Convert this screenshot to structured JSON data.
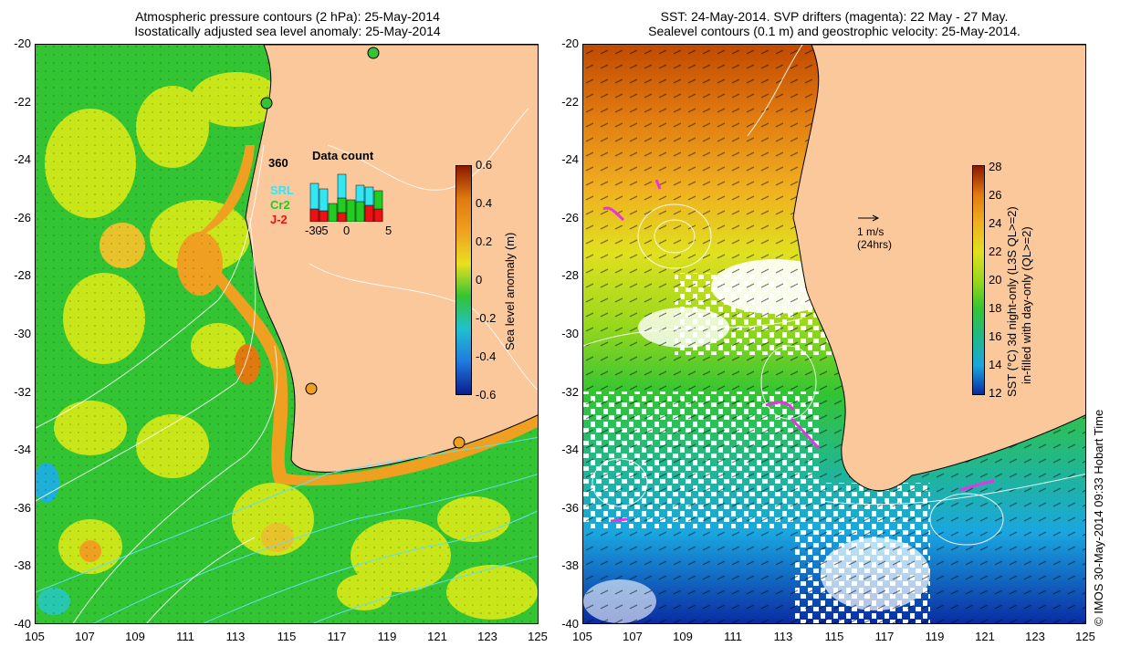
{
  "left_panel": {
    "title_line1": "Atmospheric pressure contours (2 hPa): 25-May-2014",
    "title_line2": "Isostatically adjusted sea level anomaly: 25-May-2014",
    "y_ticks": [
      "-20",
      "-22",
      "-24",
      "-26",
      "-28",
      "-30",
      "-32",
      "-34",
      "-36",
      "-38",
      "-40"
    ],
    "x_ticks": [
      "105",
      "107",
      "109",
      "111",
      "113",
      "115",
      "117",
      "119",
      "121",
      "123",
      "125"
    ],
    "colorbar": {
      "label": "Sea level anomaly (m)",
      "ticks": [
        "0.6",
        "0.4",
        "0.2",
        "0",
        "-0.2",
        "-0.4",
        "-0.6"
      ]
    },
    "inset": {
      "title": "Data count",
      "max_label": "360",
      "series": [
        "SRL",
        "Cr2",
        "J-2"
      ],
      "series_colors": [
        "#33e6f2",
        "#22cc22",
        "#ee1111"
      ],
      "x_labels": [
        "-5",
        "0",
        "5"
      ],
      "x_label_prefix": "-30"
    }
  },
  "right_panel": {
    "title_line1": "SST: 24-May-2014. SVP drifters (magenta): 22 May - 27 May.",
    "title_line2": "Sealevel contours (0.1 m) and geostrophic velocity: 25-May-2014.",
    "y_ticks": [
      "-20",
      "-22",
      "-24",
      "-26",
      "-28",
      "-30",
      "-32",
      "-34",
      "-36",
      "-38",
      "-40"
    ],
    "x_ticks": [
      "105",
      "107",
      "109",
      "111",
      "113",
      "115",
      "117",
      "119",
      "121",
      "123",
      "125"
    ],
    "velocity_scale_value": "1 m/s",
    "velocity_scale_period": "(24hrs)",
    "colorbar": {
      "label_line1": "SST (°C)  3d night-only (L3S QL>=2)",
      "label_line2": "in-filled with day-only (QL>=2)",
      "ticks": [
        "28",
        "26",
        "24",
        "22",
        "20",
        "18",
        "16",
        "14",
        "12"
      ]
    }
  },
  "credit": "© IMOS 30-May-2014 09:33 Hobart Time",
  "colors": {
    "land": "#fbc89c",
    "ocean_green": "#33c433",
    "ocean_yellow": "#c8e619",
    "drifter": "#e633e6"
  }
}
